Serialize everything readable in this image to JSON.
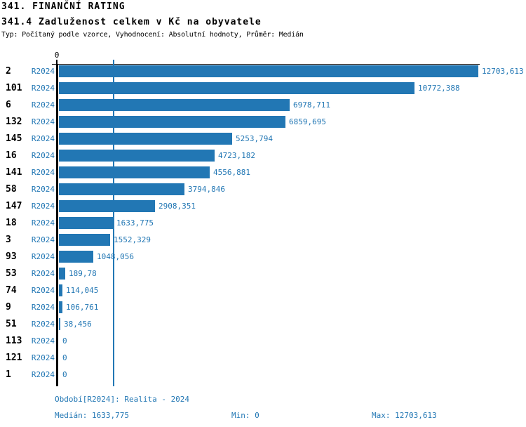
{
  "header": {
    "title": "341. FINANČNÍ RATING",
    "subtitle": "341.4 Zadluženost celkem v Kč na obyvatele",
    "type_line": "Typ: Počítaný podle vzorce, Vyhodnocení: Absolutní hodnoty, Průměr: Medián"
  },
  "chart_data": {
    "type": "bar",
    "orientation": "horizontal",
    "title": "341.4 Zadluženost celkem v Kč na obyvatele",
    "xlabel": "",
    "ylabel": "",
    "xlim": [
      0,
      12703.613
    ],
    "axis_tick_labels": [
      "0"
    ],
    "grid": false,
    "legend_position": "none",
    "series_label": "R2024",
    "median_value": 1633.775,
    "categories": [
      "2",
      "101",
      "6",
      "132",
      "145",
      "16",
      "141",
      "58",
      "147",
      "18",
      "3",
      "93",
      "53",
      "74",
      "9",
      "51",
      "113",
      "121",
      "1"
    ],
    "rows": [
      {
        "id": "2",
        "period": "R2024",
        "value": 12703.613,
        "value_label": "12703,613"
      },
      {
        "id": "101",
        "period": "R2024",
        "value": 10772.388,
        "value_label": "10772,388"
      },
      {
        "id": "6",
        "period": "R2024",
        "value": 6978.711,
        "value_label": "6978,711"
      },
      {
        "id": "132",
        "period": "R2024",
        "value": 6859.695,
        "value_label": "6859,695"
      },
      {
        "id": "145",
        "period": "R2024",
        "value": 5253.794,
        "value_label": "5253,794"
      },
      {
        "id": "16",
        "period": "R2024",
        "value": 4723.182,
        "value_label": "4723,182"
      },
      {
        "id": "141",
        "period": "R2024",
        "value": 4556.881,
        "value_label": "4556,881"
      },
      {
        "id": "58",
        "period": "R2024",
        "value": 3794.846,
        "value_label": "3794,846"
      },
      {
        "id": "147",
        "period": "R2024",
        "value": 2908.351,
        "value_label": "2908,351"
      },
      {
        "id": "18",
        "period": "R2024",
        "value": 1633.775,
        "value_label": "1633,775"
      },
      {
        "id": "3",
        "period": "R2024",
        "value": 1552.329,
        "value_label": "1552,329"
      },
      {
        "id": "93",
        "period": "R2024",
        "value": 1048.056,
        "value_label": "1048,056"
      },
      {
        "id": "53",
        "period": "R2024",
        "value": 189.78,
        "value_label": "189,78"
      },
      {
        "id": "74",
        "period": "R2024",
        "value": 114.045,
        "value_label": "114,045"
      },
      {
        "id": "9",
        "period": "R2024",
        "value": 106.761,
        "value_label": "106,761"
      },
      {
        "id": "51",
        "period": "R2024",
        "value": 38.456,
        "value_label": "38,456"
      },
      {
        "id": "113",
        "period": "R2024",
        "value": 0,
        "value_label": "0"
      },
      {
        "id": "121",
        "period": "R2024",
        "value": 0,
        "value_label": "0"
      },
      {
        "id": "1",
        "period": "R2024",
        "value": 0,
        "value_label": "0"
      }
    ]
  },
  "footer": {
    "period_line": "Období[R2024]: Realita - 2024",
    "median_label": "Medián: 1633,775",
    "min_label": "Min: 0",
    "max_label": "Max: 12703,613"
  },
  "colors": {
    "bar": "#2277b4",
    "blue_text": "#2277b4",
    "axis": "#000000",
    "background": "#ffffff"
  }
}
